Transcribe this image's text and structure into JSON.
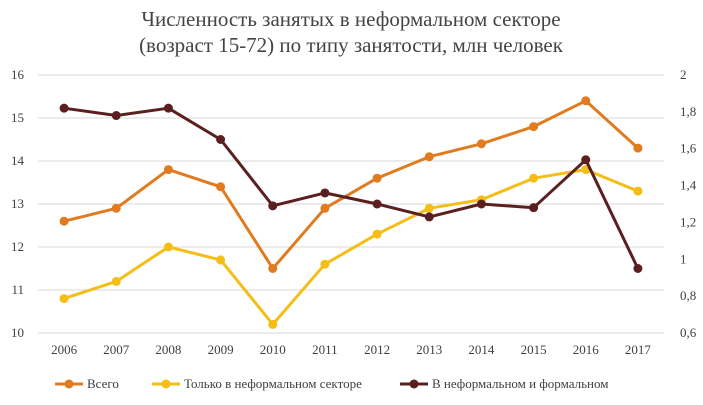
{
  "chart_data": {
    "type": "line",
    "title_line1": "Численность занятых в неформальном секторе",
    "title_line2": "(возраст 15-72) по типу занятости, млн человек",
    "categories": [
      "2006",
      "2007",
      "2008",
      "2009",
      "2010",
      "2011",
      "2012",
      "2013",
      "2014",
      "2015",
      "2016",
      "2017"
    ],
    "y_left": {
      "min": 10,
      "max": 16,
      "ticks": [
        "10",
        "11",
        "12",
        "13",
        "14",
        "15",
        "16"
      ]
    },
    "y_right": {
      "min": 0.6,
      "max": 2,
      "ticks": [
        "0,6",
        "0,8",
        "1",
        "1,2",
        "1,4",
        "1,6",
        "1,8",
        "2"
      ]
    },
    "grid": true,
    "legend_position": "bottom",
    "series": [
      {
        "name": "Всего",
        "axis": "left",
        "color": "#E07B1F",
        "values": [
          12.6,
          12.9,
          13.8,
          13.4,
          11.5,
          12.9,
          13.6,
          14.1,
          14.4,
          14.8,
          15.4,
          14.3
        ]
      },
      {
        "name": "Только в неформальном секторе",
        "axis": "left",
        "color": "#F5BE16",
        "values": [
          10.8,
          11.2,
          12.0,
          11.7,
          10.2,
          11.6,
          12.3,
          12.9,
          13.1,
          13.6,
          13.8,
          13.3
        ]
      },
      {
        "name": "В неформальном и формальном",
        "axis": "right",
        "color": "#5A2020",
        "values": [
          1.82,
          1.78,
          1.82,
          1.65,
          1.29,
          1.36,
          1.3,
          1.23,
          1.3,
          1.28,
          1.54,
          0.95
        ]
      }
    ]
  }
}
